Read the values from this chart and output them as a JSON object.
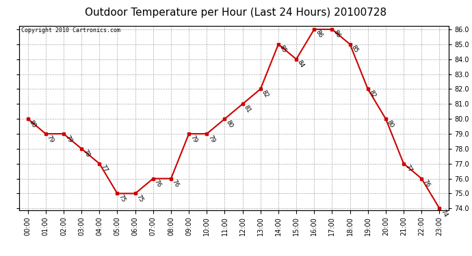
{
  "title": "Outdoor Temperature per Hour (Last 24 Hours) 20100728",
  "copyright": "Copyright 2010 Cartronics.com",
  "hours": [
    "00:00",
    "01:00",
    "02:00",
    "03:00",
    "04:00",
    "05:00",
    "06:00",
    "07:00",
    "08:00",
    "09:00",
    "10:00",
    "11:00",
    "12:00",
    "13:00",
    "14:00",
    "15:00",
    "16:00",
    "17:00",
    "18:00",
    "19:00",
    "20:00",
    "21:00",
    "22:00",
    "23:00"
  ],
  "temps": [
    80,
    79,
    79,
    78,
    77,
    75,
    75,
    76,
    76,
    79,
    79,
    80,
    81,
    82,
    85,
    84,
    86,
    86,
    85,
    82,
    80,
    77,
    76,
    74
  ],
  "ylim_min": 74.0,
  "ylim_max": 86.0,
  "line_color": "#cc0000",
  "marker_color": "#cc0000",
  "grid_color": "#aaaaaa",
  "bg_color": "#ffffff",
  "title_fontsize": 11,
  "label_fontsize": 7,
  "annotation_fontsize": 6.5,
  "copyright_fontsize": 6
}
